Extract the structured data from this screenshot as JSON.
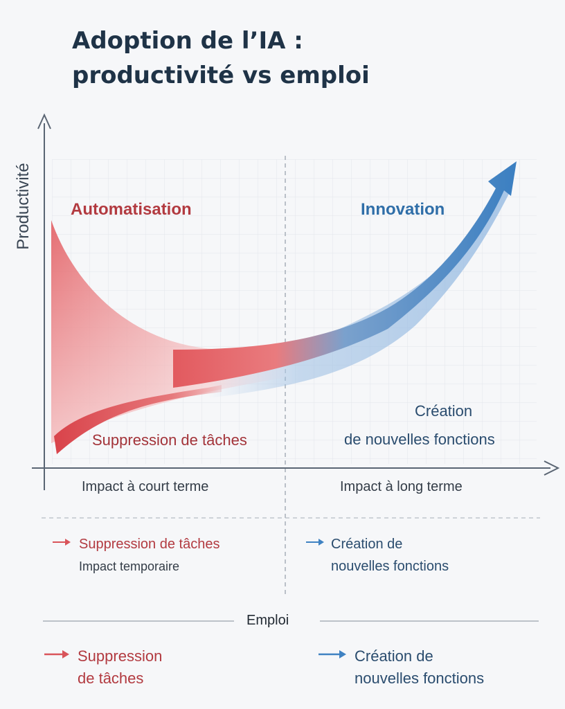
{
  "title": {
    "line1": "Adoption de l’IA :",
    "line2": "productivité vs emploi"
  },
  "chart": {
    "y_axis_label": "Productivité",
    "automation_label": "Automatisation",
    "innovation_label": "Innovation",
    "task_removal_label": "Suppression de tâches",
    "creation_label_line1": "Création",
    "creation_label_line2": "de nouvelles fonctions",
    "short_term_label": "Impact à court terme",
    "long_term_label": "Impact à long terme"
  },
  "legend_top": {
    "left": {
      "title": "Suppression de tâches",
      "note": "Impact temporaire"
    },
    "right": {
      "line1": "Création de",
      "line2": "nouvelles fonctions"
    }
  },
  "legend_bottom": {
    "heading": "Emploi",
    "left": {
      "line1": "Suppression",
      "line2": "de tâches"
    },
    "right": {
      "line1": "Création de",
      "line2": "nouvelles fonctions"
    }
  },
  "colors": {
    "red": "#d9545a",
    "blue": "#3f82c2",
    "axis": "#5a6573"
  }
}
